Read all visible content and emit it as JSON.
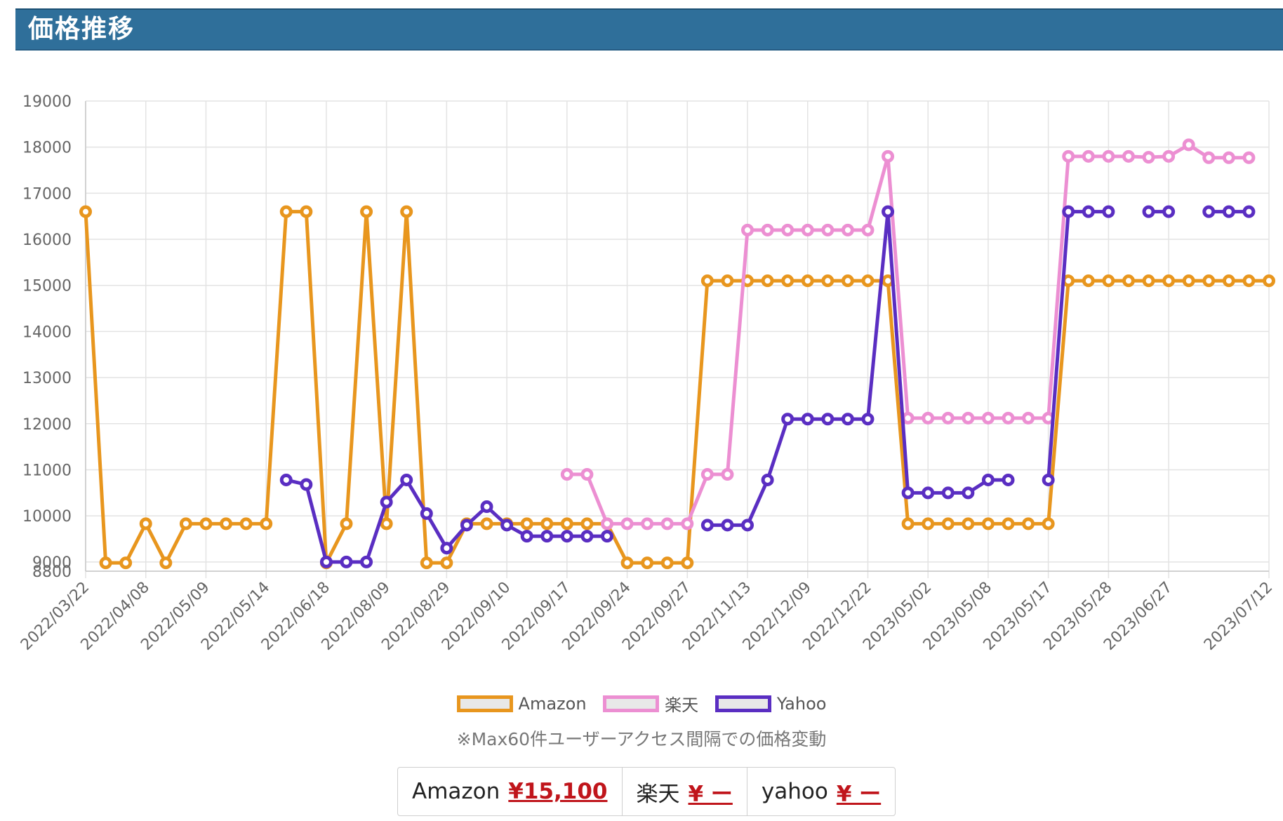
{
  "header": {
    "title": "価格推移"
  },
  "chart_data": {
    "type": "line",
    "ylim": [
      8800,
      19000
    ],
    "yticks": [
      8800,
      9000,
      10000,
      11000,
      12000,
      13000,
      14000,
      15000,
      16000,
      17000,
      18000,
      19000
    ],
    "ytick_labels": [
      "8800",
      "9000",
      "10000",
      "11000",
      "12000",
      "13000",
      "14000",
      "15000",
      "16000",
      "17000",
      "18000",
      "19000"
    ],
    "xtick_labels": [
      "2022/03/22",
      "2022/04/08",
      "2022/05/09",
      "2022/05/14",
      "2022/06/18",
      "2022/08/09",
      "2022/08/29",
      "2022/09/10",
      "2022/09/17",
      "2022/09/24",
      "2022/09/27",
      "2022/11/13",
      "2022/12/09",
      "2022/12/22",
      "2023/05/02",
      "2023/05/08",
      "2023/05/17",
      "2023/05/28",
      "2023/06/27",
      "2023/07/12"
    ],
    "xtick_index": [
      0,
      3,
      6,
      9,
      12,
      15,
      18,
      21,
      24,
      27,
      30,
      33,
      36,
      39,
      42,
      45,
      48,
      51,
      54,
      59
    ],
    "point_count": 60,
    "grid": true,
    "legend_position": "bottom",
    "series": [
      {
        "name": "Amazon",
        "color": "#e8961e",
        "values": [
          16600,
          8980,
          8980,
          9830,
          8980,
          9830,
          9830,
          9830,
          9830,
          9830,
          16600,
          16600,
          8980,
          9830,
          16600,
          9830,
          16600,
          8980,
          8980,
          9830,
          9830,
          9830,
          9830,
          9830,
          9830,
          9830,
          9830,
          8980,
          8980,
          8980,
          8980,
          15100,
          15100,
          15100,
          15100,
          15100,
          15100,
          15100,
          15100,
          15100,
          15100,
          9830,
          9830,
          9830,
          9830,
          9830,
          9830,
          9830,
          9830,
          15100,
          15100,
          15100,
          15100,
          15100,
          15100,
          15100,
          15100,
          15100,
          15100,
          15100
        ]
      },
      {
        "name": "楽天",
        "color": "#ec8fd2",
        "values": [
          null,
          null,
          null,
          null,
          null,
          null,
          null,
          null,
          null,
          null,
          null,
          null,
          null,
          null,
          null,
          null,
          null,
          null,
          null,
          null,
          null,
          null,
          null,
          null,
          10900,
          10900,
          9830,
          9830,
          9830,
          9830,
          9830,
          10900,
          10900,
          16200,
          16200,
          16200,
          16200,
          16200,
          16200,
          16200,
          17800,
          12120,
          12120,
          12120,
          12120,
          12120,
          12120,
          12120,
          12120,
          17800,
          17800,
          17800,
          17800,
          17780,
          17800,
          18050,
          17770,
          17770,
          17770,
          null
        ]
      },
      {
        "name": "Yahoo",
        "color": "#5a2ec2",
        "values": [
          null,
          null,
          null,
          null,
          null,
          null,
          null,
          null,
          null,
          null,
          10780,
          10680,
          9000,
          9000,
          9000,
          10300,
          10780,
          10050,
          9300,
          9800,
          10200,
          9800,
          9560,
          9560,
          9560,
          9560,
          9560,
          null,
          null,
          null,
          null,
          9800,
          9800,
          9800,
          10780,
          12100,
          12100,
          12100,
          12100,
          12100,
          16600,
          10500,
          10500,
          10500,
          10500,
          10780,
          10780,
          null,
          10780,
          16600,
          16600,
          16600,
          null,
          16600,
          16600,
          null,
          16600,
          16600,
          16600,
          null
        ]
      }
    ]
  },
  "legend": {
    "items": [
      {
        "label": "Amazon",
        "color": "#e8961e"
      },
      {
        "label": "楽天",
        "color": "#ec8fd2"
      },
      {
        "label": "Yahoo",
        "color": "#5a2ec2"
      }
    ]
  },
  "note": "※Max60件ユーザーアクセス間隔での価格変動",
  "prices": [
    {
      "store": "Amazon",
      "value": "¥15,100"
    },
    {
      "store": "楽天",
      "value": "¥ ー"
    },
    {
      "store": "yahoo",
      "value": "¥ ー"
    }
  ]
}
